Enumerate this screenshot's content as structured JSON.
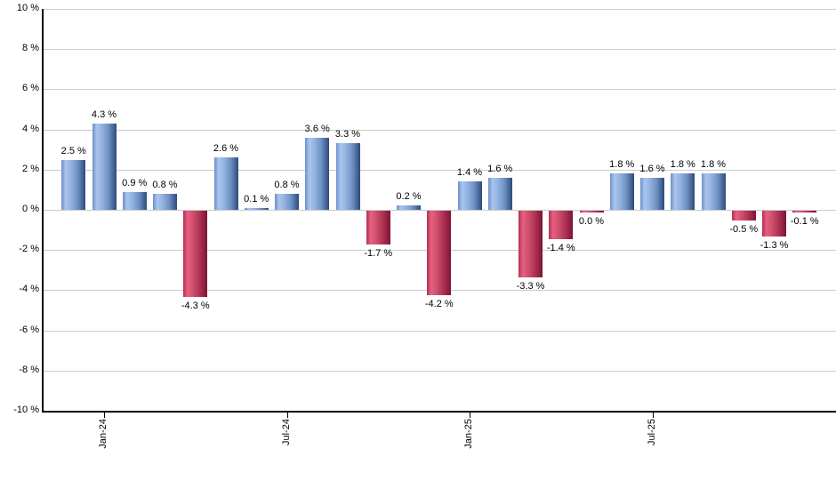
{
  "chart_data": {
    "type": "bar",
    "title": "",
    "xlabel": "",
    "ylabel": "",
    "ylim": [
      -10,
      10
    ],
    "y_step": 2,
    "grid": "horizontal",
    "legend": false,
    "y_tick_labels": [
      "10 %",
      "8 %",
      "6 %",
      "4 %",
      "2 %",
      "0 %",
      "-2 %",
      "-4 %",
      "-6 %",
      "-8 %",
      "-10 %"
    ],
    "x_tick_labels": [
      "Jan-24",
      "Jul-24",
      "Jan-25",
      "Jul-25"
    ],
    "x_tick_bar_index": [
      1,
      7,
      13,
      19
    ],
    "values": [
      2.5,
      4.3,
      0.9,
      0.8,
      -4.3,
      2.6,
      0.1,
      0.8,
      3.6,
      3.3,
      -1.7,
      0.2,
      -4.2,
      1.4,
      1.6,
      -3.3,
      -1.4,
      0.0,
      1.8,
      1.6,
      1.8,
      1.8,
      -0.5,
      -1.3,
      -0.1
    ],
    "bar_labels": [
      "2.5 %",
      "4.3 %",
      "0.9 %",
      "0.8 %",
      "-4.3 %",
      "2.6 %",
      "0.1 %",
      "0.8 %",
      "3.6 %",
      "3.3 %",
      "-1.7 %",
      "0.2 %",
      "-4.2 %",
      "1.4 %",
      "1.6 %",
      "-3.3 %",
      "-1.4 %",
      "0.0 %",
      "1.8 %",
      "1.6 %",
      "1.8 %",
      "1.8 %",
      "-0.5 %",
      "-1.3 %",
      "-0.1 %"
    ],
    "bar_colors": [
      "blue",
      "blue",
      "blue",
      "blue",
      "red",
      "blue",
      "blue",
      "blue",
      "blue",
      "blue",
      "red",
      "blue",
      "red",
      "blue",
      "blue",
      "red",
      "red",
      "red",
      "blue",
      "blue",
      "blue",
      "blue",
      "red",
      "red",
      "red"
    ],
    "colors": {
      "positive_bar_light": "#a9c5ef",
      "positive_bar_dark": "#2e4a75",
      "negative_bar_light": "#e8607f",
      "negative_bar_dark": "#771432",
      "gridline": "#cccccc",
      "axis": "#000000",
      "label": "#000000",
      "background": "#ffffff"
    }
  }
}
